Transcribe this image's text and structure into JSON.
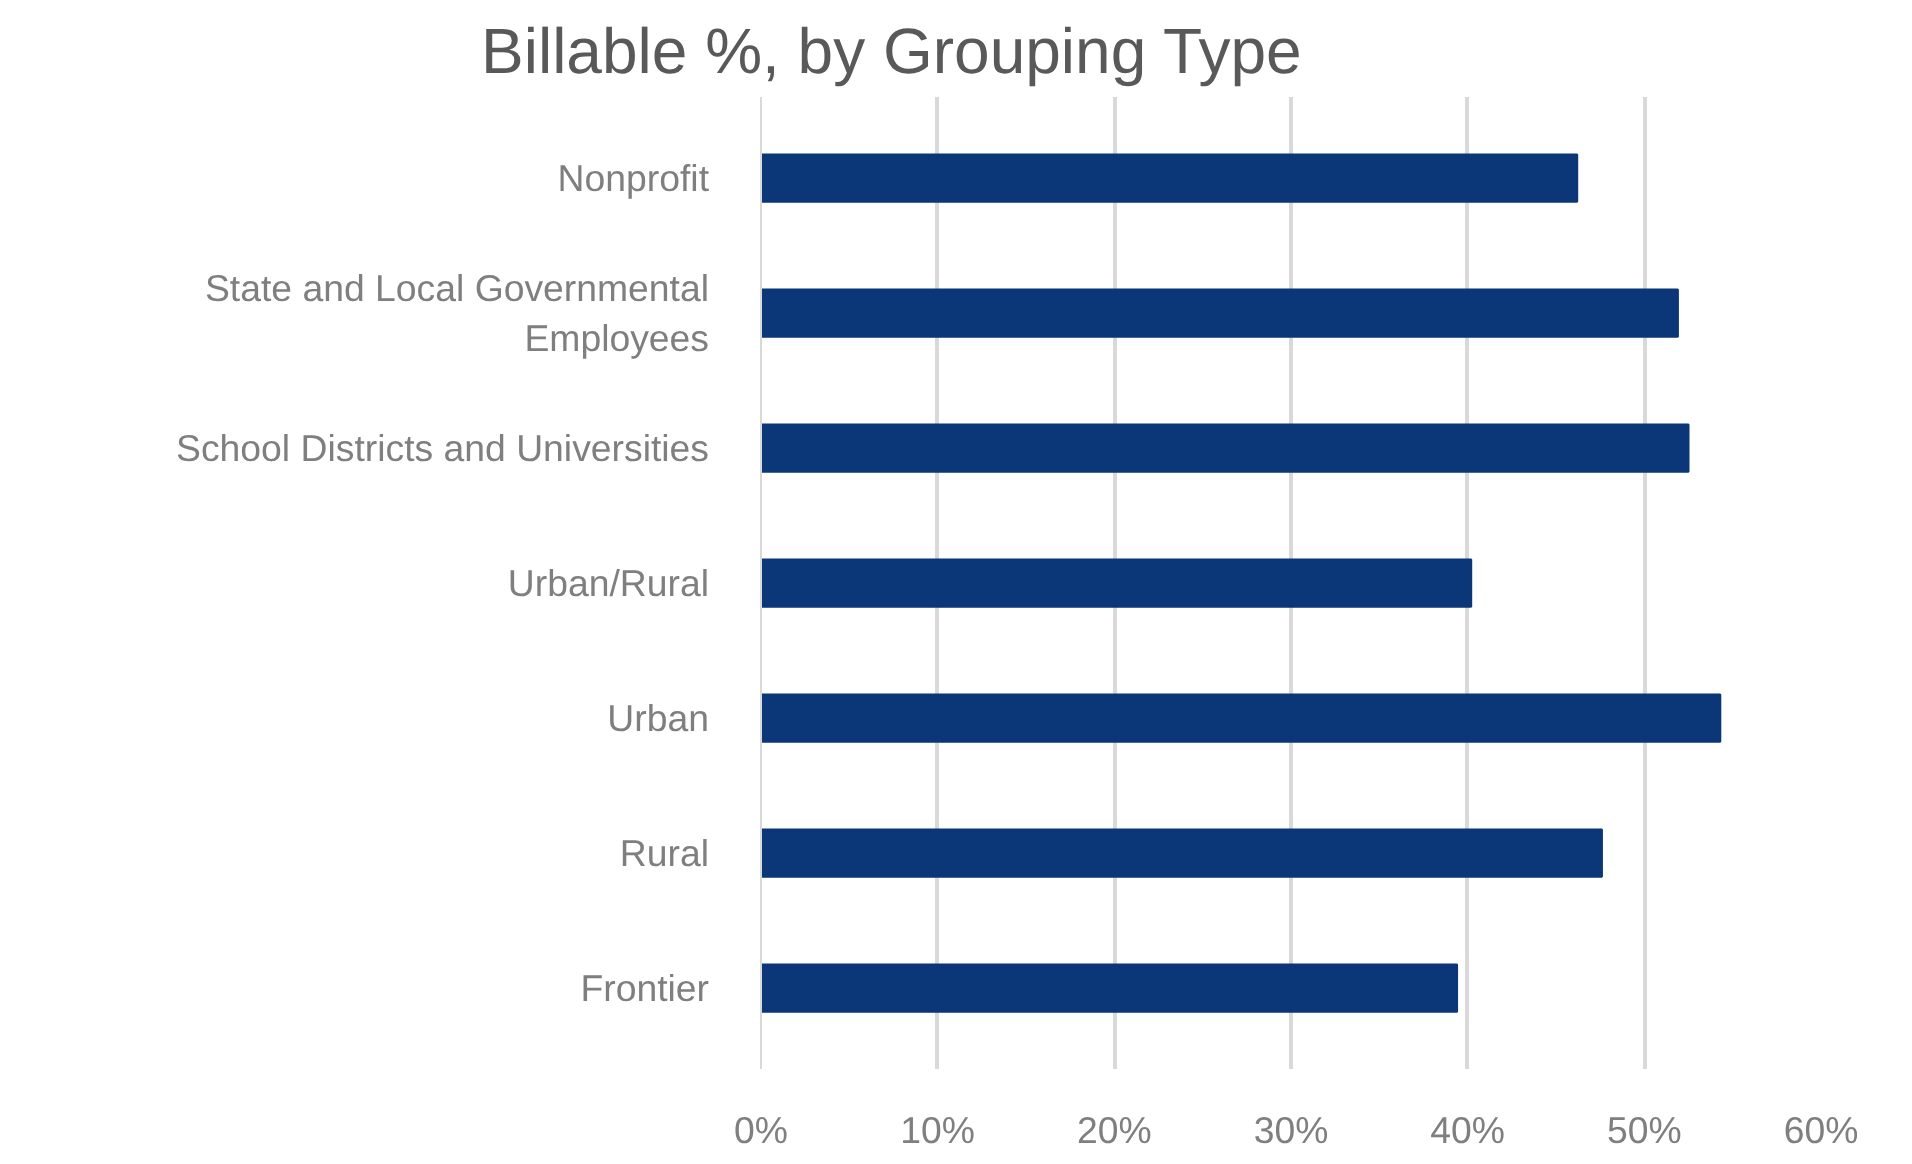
{
  "chart_data": {
    "type": "bar",
    "orientation": "horizontal",
    "title": "Billable %, by Grouping Type",
    "categories": [
      "Nonprofit",
      "State and Local Governmental\nEmployees",
      "School Districts and Universities",
      "Urban/Rural",
      "Urban",
      "Rural",
      "Frontier"
    ],
    "values": [
      46.2,
      51.9,
      52.5,
      40.2,
      54.3,
      47.6,
      39.4
    ],
    "color": "#0b3677",
    "xlim": [
      0,
      60
    ],
    "xticks": [
      {
        "value": 0,
        "label": "0%"
      },
      {
        "value": 10,
        "label": "10%"
      },
      {
        "value": 20,
        "label": "20%"
      },
      {
        "value": 30,
        "label": "30%"
      },
      {
        "value": 40,
        "label": "40%"
      },
      {
        "value": 50,
        "label": "50%"
      },
      {
        "value": 60,
        "label": "60%"
      }
    ],
    "grid": "x"
  }
}
